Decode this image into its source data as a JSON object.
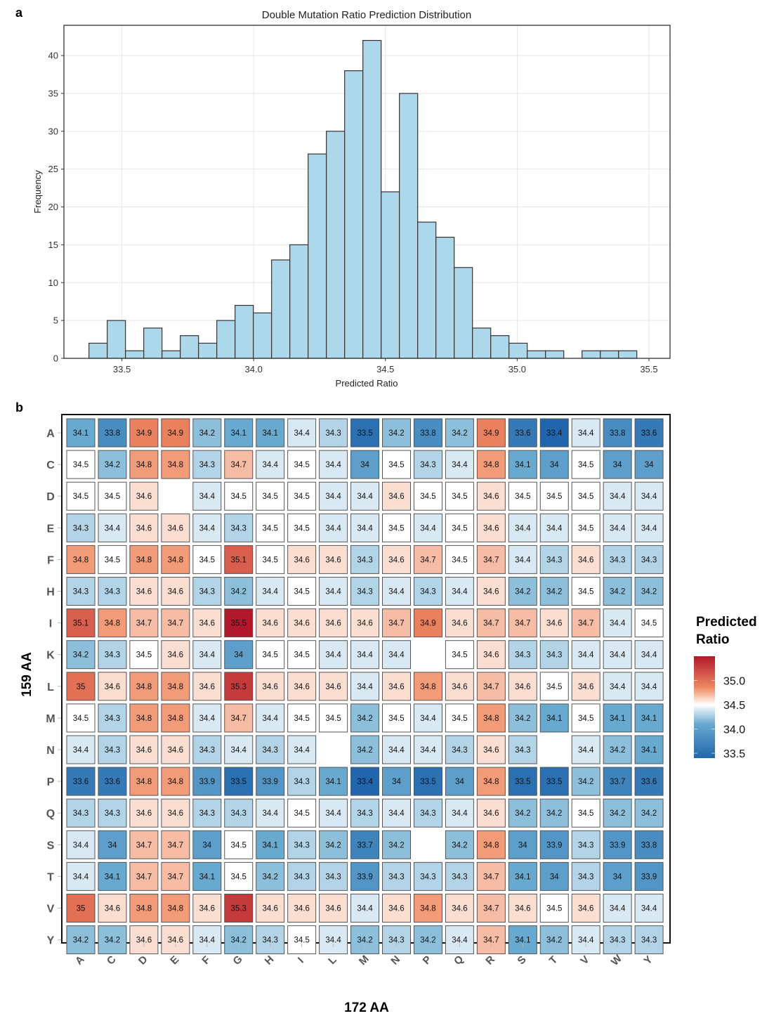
{
  "panels": {
    "a": "a",
    "b": "b"
  },
  "chart_data": [
    {
      "type": "bar",
      "subtype": "histogram",
      "title": "Double Mutation Ratio Prediction Distribution",
      "xlabel": "Predicted Ratio",
      "ylabel": "Frequency",
      "bin_start": 33.375,
      "bin_width": 0.0693,
      "values": [
        2,
        5,
        1,
        4,
        1,
        3,
        2,
        5,
        7,
        6,
        13,
        15,
        27,
        30,
        38,
        42,
        22,
        35,
        18,
        16,
        12,
        4,
        3,
        2,
        1,
        1,
        0,
        1,
        1,
        1
      ],
      "xlim": [
        33.28,
        35.58
      ],
      "ylim": [
        0,
        44
      ],
      "xticks": [
        "33.5",
        "34.0",
        "34.5",
        "35.0",
        "35.5"
      ],
      "xtick_values": [
        33.5,
        34.0,
        34.5,
        35.0,
        35.5
      ],
      "yticks": [
        "0",
        "5",
        "10",
        "15",
        "20",
        "25",
        "30",
        "35",
        "40"
      ],
      "ytick_values": [
        0,
        5,
        10,
        15,
        20,
        25,
        30,
        35,
        40
      ],
      "grid": true,
      "bar_color": "#add8ec",
      "bar_edge": "#333333"
    },
    {
      "type": "heatmap",
      "xlabel": "172 AA",
      "ylabel": "159 AA",
      "x_categories": [
        "A",
        "C",
        "D",
        "E",
        "F",
        "G",
        "H",
        "I",
        "L",
        "M",
        "N",
        "P",
        "Q",
        "R",
        "S",
        "T",
        "V",
        "W",
        "Y"
      ],
      "y_categories": [
        "A",
        "C",
        "D",
        "E",
        "F",
        "H",
        "I",
        "K",
        "L",
        "M",
        "N",
        "P",
        "Q",
        "S",
        "T",
        "V",
        "Y"
      ],
      "values": [
        [
          34.1,
          33.8,
          34.9,
          34.9,
          34.2,
          34.1,
          34.1,
          34.4,
          34.3,
          33.5,
          34.2,
          33.8,
          34.2,
          34.9,
          33.6,
          33.4,
          34.4,
          33.8,
          33.6
        ],
        [
          34.5,
          34.2,
          34.8,
          34.8,
          34.3,
          34.7,
          34.4,
          34.5,
          34.4,
          34,
          34.5,
          34.3,
          34.4,
          34.8,
          34.1,
          34,
          34.5,
          34,
          34
        ],
        [
          34.5,
          34.5,
          34.6,
          null,
          34.4,
          34.5,
          34.5,
          34.5,
          34.4,
          34.4,
          34.6,
          34.5,
          34.5,
          34.6,
          34.5,
          34.5,
          34.5,
          34.4,
          34.4
        ],
        [
          34.3,
          34.4,
          34.6,
          34.6,
          34.4,
          34.3,
          34.5,
          34.5,
          34.4,
          34.4,
          34.5,
          34.4,
          34.5,
          34.6,
          34.4,
          34.4,
          34.5,
          34.4,
          34.4
        ],
        [
          34.8,
          34.5,
          34.8,
          34.8,
          34.5,
          35.1,
          34.5,
          34.6,
          34.6,
          34.3,
          34.6,
          34.7,
          34.5,
          34.7,
          34.4,
          34.3,
          34.6,
          34.3,
          34.3
        ],
        [
          34.3,
          34.3,
          34.6,
          34.6,
          34.3,
          34.2,
          34.4,
          34.5,
          34.4,
          34.3,
          34.4,
          34.3,
          34.4,
          34.6,
          34.2,
          34.2,
          34.5,
          34.2,
          34.2
        ],
        [
          35.1,
          34.8,
          34.7,
          34.7,
          34.6,
          35.5,
          34.6,
          34.6,
          34.6,
          34.6,
          34.7,
          34.9,
          34.6,
          34.7,
          34.7,
          34.6,
          34.7,
          34.4,
          34.5
        ],
        [
          34.2,
          34.3,
          34.5,
          34.6,
          34.4,
          34,
          34.5,
          34.5,
          34.4,
          34.4,
          34.4,
          null,
          34.5,
          34.6,
          34.3,
          34.3,
          34.4,
          34.4,
          34.4
        ],
        [
          35,
          34.6,
          34.8,
          34.8,
          34.6,
          35.3,
          34.6,
          34.6,
          34.6,
          34.4,
          34.6,
          34.8,
          34.6,
          34.7,
          34.6,
          34.5,
          34.6,
          34.4,
          34.4
        ],
        [
          34.5,
          34.3,
          34.8,
          34.8,
          34.4,
          34.7,
          34.4,
          34.5,
          34.5,
          34.2,
          34.5,
          34.4,
          34.5,
          34.8,
          34.2,
          34.1,
          34.5,
          34.1,
          34.1
        ],
        [
          34.4,
          34.3,
          34.6,
          34.6,
          34.3,
          34.4,
          34.3,
          34.4,
          null,
          34.2,
          34.4,
          34.4,
          34.3,
          34.6,
          34.3,
          null,
          34.4,
          34.2,
          34.1
        ],
        [
          33.6,
          33.6,
          34.8,
          34.8,
          33.9,
          33.5,
          33.9,
          34.3,
          34.1,
          33.4,
          34,
          33.5,
          34,
          34.8,
          33.5,
          33.5,
          34.2,
          33.7,
          33.6
        ],
        [
          34.3,
          34.3,
          34.6,
          34.6,
          34.3,
          34.3,
          34.4,
          34.5,
          34.4,
          34.3,
          34.4,
          34.3,
          34.4,
          34.6,
          34.2,
          34.2,
          34.5,
          34.2,
          34.2
        ],
        [
          34.4,
          34,
          34.7,
          34.7,
          34,
          34.5,
          34.1,
          34.3,
          34.2,
          33.7,
          34.2,
          null,
          34.2,
          34.8,
          34,
          33.9,
          34.3,
          33.9,
          33.8
        ],
        [
          34.4,
          34.1,
          34.7,
          34.7,
          34.1,
          34.5,
          34.2,
          34.3,
          34.3,
          33.9,
          34.3,
          34.3,
          34.3,
          34.7,
          34.1,
          34,
          34.3,
          34,
          33.9
        ],
        [
          35,
          34.6,
          34.8,
          34.8,
          34.6,
          35.3,
          34.6,
          34.6,
          34.6,
          34.4,
          34.6,
          34.8,
          34.6,
          34.7,
          34.6,
          34.5,
          34.6,
          34.4,
          34.4
        ],
        [
          34.2,
          34.2,
          34.6,
          34.6,
          34.4,
          34.2,
          34.3,
          34.5,
          34.4,
          34.2,
          34.3,
          34.2,
          34.4,
          34.7,
          34.1,
          34.2,
          34.4,
          34.3,
          34.3
        ]
      ],
      "legend": {
        "title_line1": "Predicted",
        "title_line2": "Ratio",
        "ticks": [
          "35.0",
          "34.5",
          "34.0",
          "33.5"
        ],
        "tick_values": [
          35.0,
          34.5,
          34.0,
          33.5
        ],
        "range": [
          33.4,
          35.5
        ],
        "midpoint": 34.5,
        "low_color": "#2166ac",
        "mid_color": "#ffffff",
        "high_color": "#b2182b",
        "placement": "right"
      }
    }
  ]
}
